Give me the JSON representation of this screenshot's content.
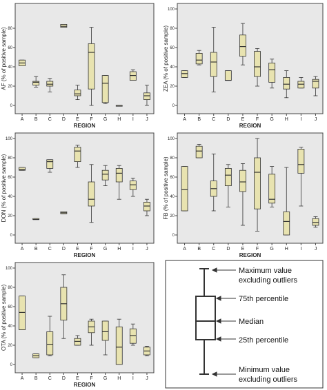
{
  "chart_data": [
    {
      "id": "AF",
      "type": "box",
      "ylabel": "AF (% of positive sample)",
      "xlabel": "REGION",
      "ylim": [
        0,
        100
      ],
      "yticks": [
        "0",
        "20",
        "40",
        "60",
        "80"
      ],
      "categories": [
        "A",
        "B",
        "C",
        "D",
        "E",
        "F",
        "G",
        "H",
        "I",
        "J"
      ],
      "boxes": [
        {
          "min": 41,
          "q1": 41,
          "median": 44,
          "q3": 47,
          "max": 47
        },
        {
          "min": 19,
          "q1": 21,
          "median": 24,
          "q3": 25,
          "max": 30
        },
        {
          "min": 14,
          "q1": 20,
          "median": 22,
          "q3": 25,
          "max": 28
        },
        {
          "min": 81,
          "q1": 81,
          "median": 82,
          "q3": 84,
          "max": 84
        },
        {
          "min": 6,
          "q1": 10,
          "median": 12,
          "q3": 16,
          "max": 21
        },
        {
          "min": 0,
          "q1": 17,
          "median": 55,
          "q3": 64,
          "max": 81
        },
        {
          "min": 2,
          "q1": 3,
          "median": 23,
          "q3": 31,
          "max": 31
        },
        {
          "min": 0,
          "q1": 0,
          "median": 0,
          "q3": 0,
          "max": 0
        },
        {
          "min": 26,
          "q1": 26,
          "median": 31,
          "q3": 35,
          "max": 37
        },
        {
          "min": 0,
          "q1": 6,
          "median": 10,
          "q3": 13,
          "max": 21
        }
      ]
    },
    {
      "id": "ZEA",
      "type": "box",
      "ylabel": "ZEA (% of positive sample)",
      "xlabel": "REGION",
      "ylim": [
        0,
        100
      ],
      "yticks": [
        "0",
        "20",
        "40",
        "60",
        "80",
        "100"
      ],
      "categories": [
        "A",
        "B",
        "C",
        "D",
        "E",
        "F",
        "G",
        "H",
        "I",
        "J"
      ],
      "boxes": [
        {
          "min": 29,
          "q1": 29,
          "median": 33,
          "q3": 36,
          "max": 36
        },
        {
          "min": 42,
          "q1": 43,
          "median": 47,
          "q3": 54,
          "max": 57
        },
        {
          "min": 14,
          "q1": 30,
          "median": 45,
          "q3": 55,
          "max": 81
        },
        {
          "min": 26,
          "q1": 26,
          "median": 26,
          "q3": 36,
          "max": 36
        },
        {
          "min": 42,
          "q1": 51,
          "median": 61,
          "q3": 73,
          "max": 85
        },
        {
          "min": 20,
          "q1": 30,
          "median": 40,
          "q3": 56,
          "max": 59
        },
        {
          "min": 18,
          "q1": 24,
          "median": 37,
          "q3": 44,
          "max": 48
        },
        {
          "min": 8,
          "q1": 17,
          "median": 22,
          "q3": 29,
          "max": 36
        },
        {
          "min": 18,
          "q1": 18,
          "median": 22,
          "q3": 25,
          "max": 29
        },
        {
          "min": 10,
          "q1": 18,
          "median": 25,
          "q3": 27,
          "max": 30
        }
      ]
    },
    {
      "id": "DON",
      "type": "box",
      "ylabel": "DON (% of positive sample)",
      "xlabel": "REGION",
      "ylim": [
        0,
        100
      ],
      "yticks": [
        "0",
        "20",
        "40",
        "60",
        "80",
        "100"
      ],
      "categories": [
        "A",
        "B",
        "C",
        "D",
        "E",
        "F",
        "G",
        "H",
        "I",
        "J"
      ],
      "boxes": [
        {
          "min": 67,
          "q1": 67,
          "median": 68,
          "q3": 70,
          "max": 70
        },
        {
          "min": 16,
          "q1": 16,
          "median": 16,
          "q3": 17,
          "max": 17
        },
        {
          "min": 65,
          "q1": 69,
          "median": 76,
          "q3": 78,
          "max": 78
        },
        {
          "min": 22,
          "q1": 22,
          "median": 23,
          "q3": 24,
          "max": 24
        },
        {
          "min": 70,
          "q1": 76,
          "median": 87,
          "q3": 91,
          "max": 93
        },
        {
          "min": 13,
          "q1": 30,
          "median": 37,
          "q3": 55,
          "max": 73
        },
        {
          "min": 51,
          "q1": 57,
          "median": 63,
          "q3": 67,
          "max": 72
        },
        {
          "min": 37,
          "q1": 55,
          "median": 64,
          "q3": 69,
          "max": 72
        },
        {
          "min": 40,
          "q1": 47,
          "median": 52,
          "q3": 56,
          "max": 59
        },
        {
          "min": 20,
          "q1": 25,
          "median": 30,
          "q3": 34,
          "max": 37
        }
      ]
    },
    {
      "id": "FB",
      "type": "box",
      "ylabel": "FB (% of positive sample)",
      "xlabel": "REGION",
      "ylim": [
        0,
        100
      ],
      "yticks": [
        "0",
        "20",
        "40",
        "60",
        "80",
        "100"
      ],
      "categories": [
        "A",
        "B",
        "C",
        "D",
        "E",
        "F",
        "G",
        "H",
        "I",
        "J"
      ],
      "boxes": [
        {
          "min": 25,
          "q1": 25,
          "median": 47,
          "q3": 71,
          "max": 71
        },
        {
          "min": 80,
          "q1": 80,
          "median": 87,
          "q3": 92,
          "max": 94
        },
        {
          "min": 25,
          "q1": 40,
          "median": 48,
          "q3": 56,
          "max": 84
        },
        {
          "min": 29,
          "q1": 51,
          "median": 62,
          "q3": 69,
          "max": 73
        },
        {
          "min": 10,
          "q1": 45,
          "median": 55,
          "q3": 67,
          "max": 74
        },
        {
          "min": 4,
          "q1": 27,
          "median": 65,
          "q3": 80,
          "max": 100
        },
        {
          "min": 29,
          "q1": 33,
          "median": 37,
          "q3": 63,
          "max": 71
        },
        {
          "min": 0,
          "q1": 0,
          "median": 14,
          "q3": 24,
          "max": 70
        },
        {
          "min": 30,
          "q1": 64,
          "median": 73,
          "q3": 89,
          "max": 91
        },
        {
          "min": 8,
          "q1": 10,
          "median": 13,
          "q3": 17,
          "max": 19
        }
      ]
    },
    {
      "id": "OTA",
      "type": "box",
      "ylabel": "OTA (% of positive sample)",
      "xlabel": "REGION",
      "ylim": [
        0,
        100
      ],
      "yticks": [
        "0",
        "20",
        "40",
        "60",
        "80",
        "100"
      ],
      "categories": [
        "A",
        "B",
        "C",
        "D",
        "E",
        "F",
        "G",
        "H",
        "I",
        "J"
      ],
      "boxes": [
        {
          "min": 36,
          "q1": 36,
          "median": 54,
          "q3": 71,
          "max": 71
        },
        {
          "min": 7,
          "q1": 7,
          "median": 9,
          "q3": 11,
          "max": 11
        },
        {
          "min": 9,
          "q1": 10,
          "median": 21,
          "q3": 34,
          "max": 50
        },
        {
          "min": 27,
          "q1": 46,
          "median": 63,
          "q3": 80,
          "max": 93
        },
        {
          "min": 20,
          "q1": 20,
          "median": 24,
          "q3": 27,
          "max": 30
        },
        {
          "min": 20,
          "q1": 33,
          "median": 39,
          "q3": 45,
          "max": 47
        },
        {
          "min": 10,
          "q1": 25,
          "median": 34,
          "q3": 45,
          "max": 45
        },
        {
          "min": 0,
          "q1": 0,
          "median": 18,
          "q3": 39,
          "max": 47
        },
        {
          "min": 20,
          "q1": 22,
          "median": 30,
          "q3": 37,
          "max": 42
        },
        {
          "min": 9,
          "q1": 10,
          "median": 14,
          "q3": 18,
          "max": 19
        }
      ]
    }
  ],
  "legend": {
    "max_label_1": "Maximum value",
    "max_label_2": "excluding outliers",
    "q3_label": "75th percentile",
    "median_label": "Median",
    "q1_label": "25th percentile",
    "min_label_1": "Minimum value",
    "min_label_2": "excluding outliers"
  },
  "colors": {
    "panel_bg": "#e8e8e8",
    "box_fill": "#e8e3b0",
    "box_stroke": "#333333",
    "axis": "#444444"
  }
}
